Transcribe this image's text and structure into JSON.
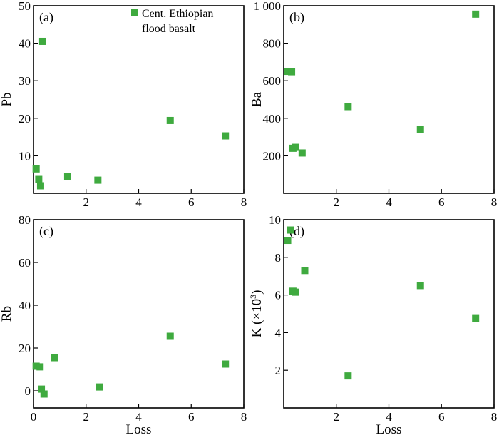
{
  "colors": {
    "marker": "#3faa3f",
    "axis": "#000000"
  },
  "legend": {
    "marker_color": "#3faa3f",
    "line1": "Cent. Ethiopian",
    "line2": "flood basalt"
  },
  "chart_data": [
    {
      "type": "scatter",
      "panel_label": "(a)",
      "xlabel": "",
      "ylabel": "Pb",
      "xlim": [
        0,
        8
      ],
      "ylim": [
        0,
        50
      ],
      "xticks": [
        2,
        4,
        6,
        8
      ],
      "yticks": [
        10,
        20,
        30,
        40,
        50
      ],
      "series": [
        {
          "name": "Cent. Ethiopian flood basalt",
          "x": [
            0.1,
            0.2,
            0.27,
            0.35,
            1.3,
            2.45,
            5.2,
            7.3
          ],
          "y": [
            6.5,
            3.7,
            2.0,
            40.5,
            4.4,
            3.5,
            19.4,
            15.3
          ]
        }
      ]
    },
    {
      "type": "scatter",
      "panel_label": "(b)",
      "xlabel": "",
      "ylabel": "Ba",
      "xlim": [
        0,
        8
      ],
      "ylim": [
        0,
        1000
      ],
      "xticks": [
        2,
        4,
        6,
        8
      ],
      "yticks": [
        200,
        400,
        600,
        800,
        1000
      ],
      "ytick_labels": [
        "200",
        "400",
        "600",
        "800",
        "1 000"
      ],
      "series": [
        {
          "name": "Cent. Ethiopian flood basalt",
          "x": [
            0.15,
            0.3,
            0.35,
            0.45,
            0.7,
            2.45,
            5.2,
            7.3
          ],
          "y": [
            650,
            648,
            240,
            245,
            215,
            462,
            340,
            955
          ]
        }
      ]
    },
    {
      "type": "scatter",
      "panel_label": "(c)",
      "xlabel": "Loss",
      "ylabel": "Rb",
      "xlim": [
        0,
        8
      ],
      "ylim": [
        -8,
        80
      ],
      "xticks": [
        0,
        2,
        4,
        6,
        8
      ],
      "yticks": [
        0,
        20,
        40,
        60,
        80
      ],
      "series": [
        {
          "name": "Cent. Ethiopian flood basalt",
          "x": [
            0.1,
            0.25,
            0.3,
            0.4,
            0.8,
            2.5,
            5.2,
            7.3
          ],
          "y": [
            11.5,
            11.2,
            0.8,
            -1.5,
            15.5,
            1.8,
            25.5,
            12.5
          ]
        }
      ]
    },
    {
      "type": "scatter",
      "panel_label": "(d)",
      "xlabel": "Loss",
      "ylabel": "K (×10",
      "ylabel_sup": "3",
      "ylabel_close": ")",
      "xlim": [
        0,
        8
      ],
      "ylim": [
        0,
        10
      ],
      "xticks": [
        2,
        4,
        6,
        8
      ],
      "yticks": [
        2,
        4,
        6,
        8,
        10
      ],
      "series": [
        {
          "name": "Cent. Ethiopian flood basalt",
          "x": [
            0.15,
            0.25,
            0.35,
            0.45,
            0.8,
            2.45,
            5.2,
            7.3
          ],
          "y": [
            8.9,
            9.45,
            6.2,
            6.15,
            7.3,
            1.7,
            6.5,
            4.75
          ]
        }
      ]
    }
  ]
}
